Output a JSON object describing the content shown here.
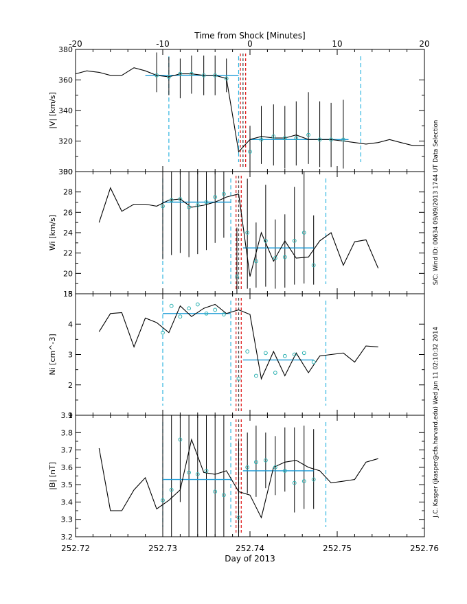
{
  "figure": {
    "top_axis_label": "Time from Shock [Minutes]",
    "bottom_axis_label": "Day of 2013",
    "side_label_1": "S/C: Wind ID: 00634 09/09/2013  1744 UT Data Selection",
    "side_label_2": "J.C. Kasper (jkasper@cfa.harvard.edu)   Wed Jun 11 02:10:32 2014"
  },
  "colors": {
    "trace": "#000000",
    "fit": "#1a9ad6",
    "interval": "#2fb5e0",
    "shock": "#e02020",
    "shock_alt": "#4a4a4a",
    "marker": "#2ab0b0"
  },
  "chart_data": {
    "type": "line",
    "x_range": [
      252.72,
      252.76
    ],
    "x_ticks": [
      "252.72",
      "252.73",
      "252.74",
      "252.75",
      "252.76"
    ],
    "top_x_range": [
      -20,
      20
    ],
    "top_ticks": [
      "-20",
      "-10",
      "0",
      "10",
      "20"
    ],
    "shock_time": 252.7391,
    "panels": [
      {
        "id": "v",
        "ylabel": "|V| [km/s]",
        "ylim": [
          300,
          380
        ],
        "yticks": [
          "300",
          "320",
          "340",
          "360",
          "380"
        ],
        "line_x": [
          252.72,
          252.7213,
          252.7227,
          252.724,
          252.7253,
          252.7267,
          252.728,
          252.7293,
          252.7307,
          252.732,
          252.7333,
          252.7347,
          252.736,
          252.7373,
          252.7387,
          252.74,
          252.7413,
          252.7427,
          252.744,
          252.7453,
          252.7467,
          252.748,
          252.7493,
          252.7507,
          252.752,
          252.7533,
          252.7547,
          252.756,
          252.7573,
          252.7587,
          252.76
        ],
        "line_y": [
          364,
          366,
          365,
          363,
          363,
          368,
          366,
          363,
          362,
          364,
          364,
          363,
          363,
          361,
          313,
          321,
          323,
          322,
          322,
          324,
          321,
          321,
          321,
          320,
          319,
          318,
          319,
          321,
          319,
          317,
          317
        ],
        "marker_x": [
          252.7293,
          252.7307,
          252.732,
          252.7333,
          252.7347,
          252.736,
          252.7373,
          252.74,
          252.7413,
          252.7427,
          252.744,
          252.7453,
          252.7467,
          252.748,
          252.7493,
          252.7507
        ],
        "marker_y": [
          363,
          362,
          364,
          364,
          363,
          363,
          361,
          313,
          321,
          323,
          322,
          322,
          324,
          321,
          321,
          321
        ],
        "err_lo": [
          352,
          350,
          348,
          351,
          350,
          350,
          352,
          300,
          305,
          304,
          302,
          304,
          305,
          303,
          303,
          302
        ],
        "err_hi": [
          378,
          375,
          374,
          376,
          376,
          376,
          374,
          330,
          343,
          344,
          343,
          346,
          352,
          346,
          345,
          347
        ],
        "fit_segments": [
          {
            "x0": 252.728,
            "x1": 252.7387,
            "y": 363
          },
          {
            "x0": 252.74,
            "x1": 252.7513,
            "y": 321
          }
        ],
        "interval_lines": [
          252.7307,
          252.7387,
          252.7527
        ],
        "shock_lines": [
          252.7389,
          252.7392,
          252.7395
        ]
      },
      {
        "id": "w",
        "ylabel": "Wi [km/s]",
        "ylim": [
          18,
          30
        ],
        "yticks": [
          "18",
          "20",
          "22",
          "24",
          "26",
          "28",
          "30"
        ],
        "line_x": [
          252.7227,
          252.724,
          252.7253,
          252.7267,
          252.728,
          252.7293,
          252.7307,
          252.732,
          252.7333,
          252.7347,
          252.736,
          252.7373,
          252.7387,
          252.74,
          252.7413,
          252.7427,
          252.744,
          252.7453,
          252.7467,
          252.748,
          252.7493,
          252.7507,
          252.752,
          252.7533,
          252.7547
        ],
        "line_y": [
          25.0,
          28.4,
          26.1,
          26.8,
          26.8,
          26.6,
          27.2,
          27.3,
          26.5,
          26.7,
          27.0,
          27.5,
          27.8,
          19.7,
          24.0,
          21.2,
          23.2,
          21.5,
          21.6,
          23.2,
          24.0,
          20.8,
          23.1,
          23.3,
          20.5
        ],
        "marker_x": [
          252.73,
          252.731,
          252.732,
          252.733,
          252.734,
          252.735,
          252.736,
          252.737,
          252.7385,
          252.7397,
          252.7407,
          252.7418,
          252.7429,
          252.744,
          252.7451,
          252.7462,
          252.7473
        ],
        "marker_y": [
          26.6,
          27.2,
          27.3,
          26.5,
          26.7,
          27.0,
          27.5,
          27.8,
          19.7,
          24.0,
          21.2,
          23.2,
          21.5,
          21.6,
          23.2,
          24.0,
          20.8
        ],
        "err_lo": [
          21.4,
          21.8,
          22.0,
          21.6,
          21.9,
          22.3,
          23.0,
          23.5,
          18.0,
          18.5,
          18.6,
          18.7,
          18.5,
          18.6,
          18.9,
          19.0,
          18.9
        ],
        "err_hi": [
          30.0,
          30.0,
          30.0,
          30.0,
          30.0,
          30.0,
          30.0,
          30.0,
          24.5,
          29.3,
          25.0,
          28.7,
          25.3,
          25.8,
          28.5,
          30.0,
          25.7
        ],
        "fit_segments": [
          {
            "x0": 252.73,
            "x1": 252.7378,
            "y": 27.0
          },
          {
            "x0": 252.7392,
            "x1": 252.7473,
            "y": 22.5
          }
        ],
        "interval_lines": [
          252.73,
          252.7378,
          252.7487
        ],
        "shock_lines": [
          252.7384,
          252.7387,
          252.739
        ]
      },
      {
        "id": "n",
        "ylabel": "Ni [cm^-3]",
        "ylim": [
          1,
          5
        ],
        "yticks": [
          "1",
          "2",
          "3",
          "4",
          "5"
        ],
        "line_x": [
          252.7227,
          252.724,
          252.7253,
          252.7267,
          252.728,
          252.7293,
          252.7307,
          252.732,
          252.7333,
          252.7347,
          252.736,
          252.7373,
          252.7387,
          252.74,
          252.7413,
          252.7427,
          252.744,
          252.7453,
          252.7467,
          252.748,
          252.7493,
          252.7507,
          252.752,
          252.7533,
          252.7547
        ],
        "line_y": [
          3.75,
          4.35,
          4.38,
          3.25,
          4.2,
          4.05,
          3.72,
          4.6,
          4.25,
          4.52,
          4.65,
          4.35,
          4.47,
          4.32,
          2.2,
          3.1,
          2.3,
          3.05,
          2.4,
          2.95,
          3.0,
          3.05,
          2.75,
          3.28,
          3.25
        ],
        "marker_x": [
          252.73,
          252.731,
          252.732,
          252.733,
          252.734,
          252.735,
          252.736,
          252.737,
          252.7387,
          252.7397,
          252.7407,
          252.7418,
          252.7429,
          252.744,
          252.7451,
          252.7462,
          252.7473
        ],
        "marker_y": [
          3.72,
          4.6,
          4.25,
          4.52,
          4.65,
          4.35,
          4.47,
          4.32,
          2.2,
          3.1,
          2.3,
          3.05,
          2.4,
          2.95,
          3.0,
          3.05,
          2.75
        ],
        "err_lo": [],
        "err_hi": [],
        "fit_segments": [
          {
            "x0": 252.73,
            "x1": 252.7378,
            "y": 4.35
          },
          {
            "x0": 252.7392,
            "x1": 252.7473,
            "y": 2.82
          }
        ],
        "interval_lines": [
          252.73,
          252.7378,
          252.7487
        ],
        "shock_lines": [
          252.7384,
          252.7387,
          252.739
        ]
      },
      {
        "id": "b",
        "ylabel": "|B| [nT]",
        "ylim": [
          3.2,
          3.9
        ],
        "yticks": [
          "3.2",
          "3.3",
          "3.4",
          "3.5",
          "3.6",
          "3.7",
          "3.8",
          "3.9"
        ],
        "line_x": [
          252.7227,
          252.724,
          252.7253,
          252.7267,
          252.728,
          252.7293,
          252.7307,
          252.732,
          252.7333,
          252.7347,
          252.736,
          252.7373,
          252.7387,
          252.74,
          252.7413,
          252.7427,
          252.744,
          252.7453,
          252.7467,
          252.748,
          252.7493,
          252.7507,
          252.752,
          252.7533,
          252.7547
        ],
        "line_y": [
          3.71,
          3.35,
          3.35,
          3.47,
          3.54,
          3.36,
          3.41,
          3.47,
          3.76,
          3.57,
          3.56,
          3.58,
          3.46,
          3.44,
          3.31,
          3.6,
          3.63,
          3.64,
          3.6,
          3.58,
          3.51,
          3.52,
          3.53,
          3.63,
          3.65
        ],
        "marker_x": [
          252.73,
          252.731,
          252.732,
          252.733,
          252.734,
          252.735,
          252.736,
          252.737,
          252.7387,
          252.7397,
          252.7407,
          252.7418,
          252.7429,
          252.744,
          252.7451,
          252.7462,
          252.7473
        ],
        "marker_y": [
          3.41,
          3.47,
          3.76,
          3.57,
          3.56,
          3.58,
          3.46,
          3.44,
          3.31,
          3.6,
          3.63,
          3.64,
          3.6,
          3.58,
          3.51,
          3.52,
          3.53
        ],
        "err_lo": [
          3.2,
          3.2,
          3.4,
          3.2,
          3.2,
          3.2,
          3.2,
          3.2,
          3.2,
          3.45,
          3.43,
          3.48,
          3.44,
          3.46,
          3.34,
          3.36,
          3.36
        ],
        "err_hi": [
          3.9,
          3.9,
          3.9,
          3.9,
          3.9,
          3.9,
          3.9,
          3.9,
          3.75,
          3.8,
          3.84,
          3.8,
          3.78,
          3.83,
          3.83,
          3.84,
          3.82
        ],
        "fit_segments": [
          {
            "x0": 252.73,
            "x1": 252.7378,
            "y": 3.53
          },
          {
            "x0": 252.7392,
            "x1": 252.7473,
            "y": 3.58
          }
        ],
        "interval_lines": [
          252.73,
          252.7378,
          252.7487
        ],
        "shock_lines": [
          252.7384,
          252.7387,
          252.739
        ]
      }
    ]
  }
}
